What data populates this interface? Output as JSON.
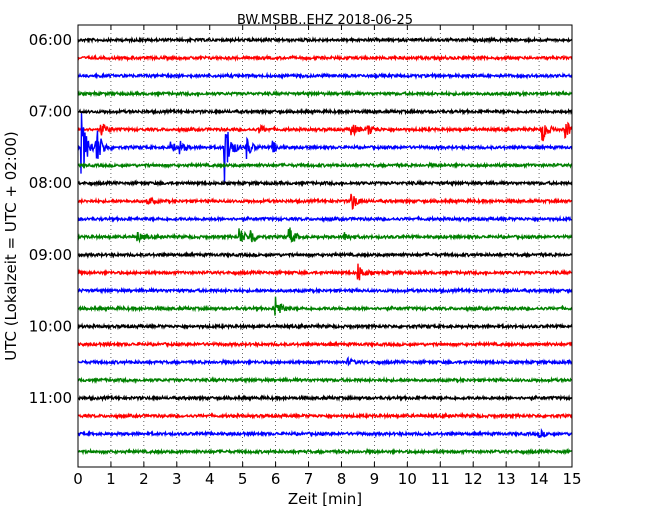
{
  "chart_data": {
    "type": "line",
    "title": "BW.MSBB..EHZ 2018-06-25",
    "xlabel": "Zeit  [min]",
    "ylabel": "UTC (Lokalzeit = UTC + 02:00)",
    "xlim": [
      0,
      15
    ],
    "x_ticks": [
      0,
      1,
      2,
      3,
      4,
      5,
      6,
      7,
      8,
      9,
      10,
      11,
      12,
      13,
      14,
      15
    ],
    "y_tick_labels": [
      "06:00",
      "07:00",
      "08:00",
      "09:00",
      "10:00",
      "11:00"
    ],
    "grid": "vertical dotted",
    "trace_start_time": "06:00",
    "trace_interval_min": 15,
    "trace_count": 24,
    "trace_colors": [
      "#000000",
      "#ff0000",
      "#0000ff",
      "#008000"
    ],
    "events": [
      {
        "trace": 5,
        "minute": 0.7,
        "amplitude": 0.7
      },
      {
        "trace": 5,
        "minute": 5.5,
        "amplitude": 0.4
      },
      {
        "trace": 5,
        "minute": 8.3,
        "amplitude": 0.7
      },
      {
        "trace": 5,
        "minute": 8.8,
        "amplitude": 0.6
      },
      {
        "trace": 5,
        "minute": 14.1,
        "amplitude": 1.2
      },
      {
        "trace": 5,
        "minute": 14.8,
        "amplitude": 1.0
      },
      {
        "trace": 6,
        "minute": 0.1,
        "amplitude": 3.5
      },
      {
        "trace": 6,
        "minute": 0.55,
        "amplitude": 2.2
      },
      {
        "trace": 6,
        "minute": 2.8,
        "amplitude": 0.6
      },
      {
        "trace": 6,
        "minute": 3.1,
        "amplitude": 0.5
      },
      {
        "trace": 6,
        "minute": 4.45,
        "amplitude": 3.5
      },
      {
        "trace": 6,
        "minute": 5.1,
        "amplitude": 1.2
      },
      {
        "trace": 6,
        "minute": 5.9,
        "amplitude": 0.6
      },
      {
        "trace": 9,
        "minute": 2.1,
        "amplitude": 0.4
      },
      {
        "trace": 9,
        "minute": 8.3,
        "amplitude": 1.0
      },
      {
        "trace": 11,
        "minute": 1.8,
        "amplitude": 0.5
      },
      {
        "trace": 11,
        "minute": 4.9,
        "amplitude": 0.9
      },
      {
        "trace": 11,
        "minute": 5.25,
        "amplitude": 0.8
      },
      {
        "trace": 11,
        "minute": 6.4,
        "amplitude": 1.1
      },
      {
        "trace": 11,
        "minute": 8.1,
        "amplitude": 0.4
      },
      {
        "trace": 13,
        "minute": 8.5,
        "amplitude": 1.0
      },
      {
        "trace": 15,
        "minute": 6.0,
        "amplitude": 1.2
      },
      {
        "trace": 18,
        "minute": 8.2,
        "amplitude": 0.3
      },
      {
        "trace": 22,
        "minute": 14.0,
        "amplitude": 0.4
      }
    ]
  }
}
